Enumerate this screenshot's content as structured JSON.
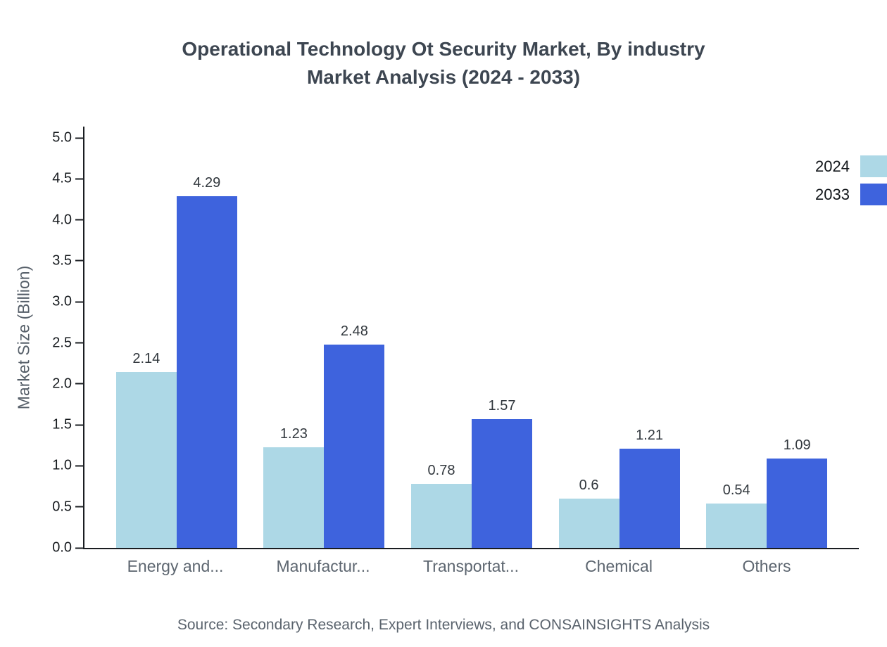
{
  "title_line1": "Operational Technology Ot Security Market, By industry",
  "title_line2": "Market Analysis (2024 - 2033)",
  "source": "Source: Secondary Research, Expert Interviews, and CONSAINSIGHTS Analysis",
  "legend": {
    "items": [
      {
        "label": "2024",
        "color": "#add8e6"
      },
      {
        "label": "2033",
        "color": "#3e63dd"
      }
    ]
  },
  "chart_data": {
    "type": "bar",
    "title": "Operational Technology Ot Security Market, By industry Market Analysis (2024 - 2033)",
    "xlabel": "",
    "ylabel": "Market Size (Billion)",
    "ylim": [
      0,
      5
    ],
    "yticks": [
      "0.0",
      "0.5",
      "1.0",
      "1.5",
      "2.0",
      "2.5",
      "3.0",
      "3.5",
      "4.0",
      "4.5",
      "5.0"
    ],
    "grid": false,
    "legend_position": "top-right",
    "categories": [
      "Energy and...",
      "Manufactur...",
      "Transportat...",
      "Chemical",
      "Others"
    ],
    "series": [
      {
        "name": "2024",
        "color": "#add8e6",
        "values": [
          2.14,
          1.23,
          0.78,
          0.6,
          0.54
        ]
      },
      {
        "name": "2033",
        "color": "#3e63dd",
        "values": [
          4.29,
          2.48,
          1.57,
          1.21,
          1.09
        ]
      }
    ]
  }
}
